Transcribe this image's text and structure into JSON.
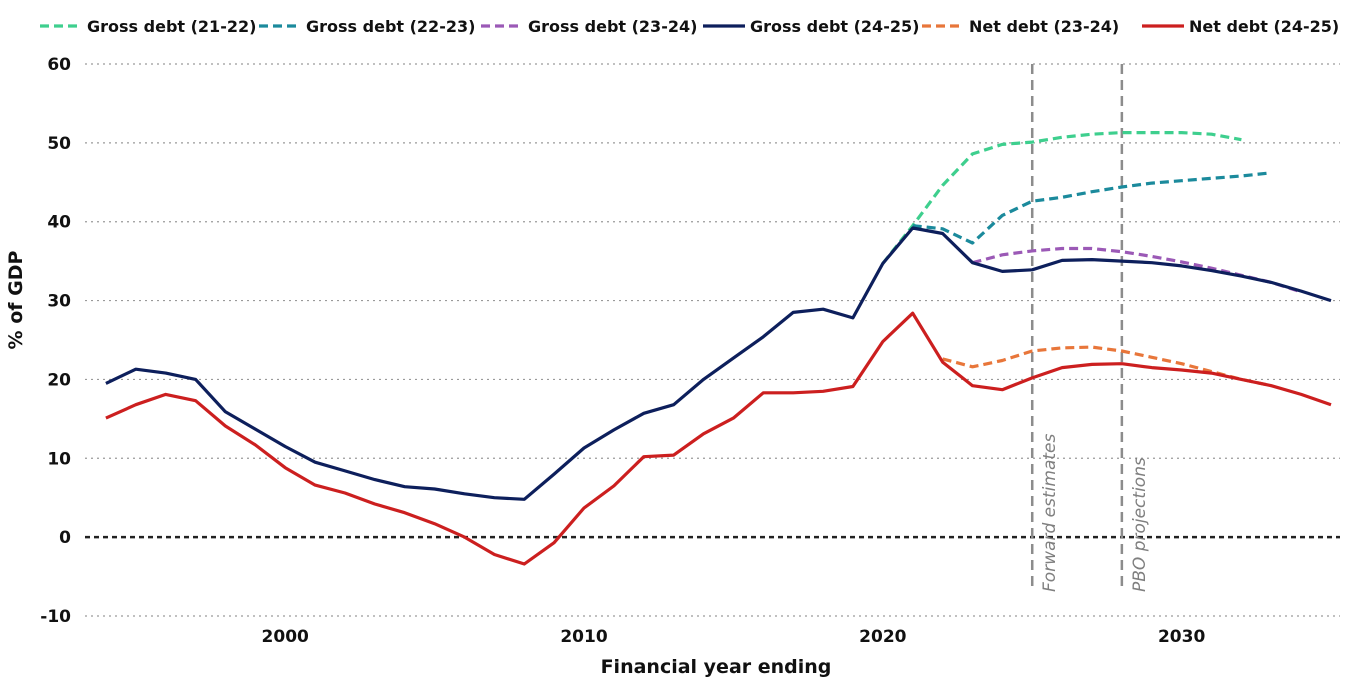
{
  "chart_data": {
    "type": "line",
    "xlabel": "Financial year ending",
    "ylabel": "% of GDP",
    "xlim": [
      1993.3,
      2035.3
    ],
    "ylim": [
      -10,
      60
    ],
    "x_ticks": [
      2000,
      2010,
      2020,
      2030
    ],
    "y_ticks": [
      -10,
      0,
      10,
      20,
      30,
      40,
      50,
      60
    ],
    "grid": "horizontal dotted",
    "legend_position": "top",
    "series": [
      {
        "name": "Gross debt (21-22)",
        "color": "#3ecf8e",
        "style": "dashed",
        "points": [
          [
            2020,
            34.7
          ],
          [
            2021,
            39.5
          ],
          [
            2022,
            44.6
          ],
          [
            2023,
            48.6
          ],
          [
            2024,
            49.8
          ],
          [
            2025,
            50.1
          ],
          [
            2026,
            50.7
          ],
          [
            2027,
            51.1
          ],
          [
            2028,
            51.3
          ],
          [
            2029,
            51.3
          ],
          [
            2030,
            51.3
          ],
          [
            2031,
            51.1
          ],
          [
            2032,
            50.4
          ]
        ]
      },
      {
        "name": "Gross debt (22-23)",
        "color": "#1b8a9c",
        "style": "dashed",
        "points": [
          [
            2021,
            39.5
          ],
          [
            2022,
            39.1
          ],
          [
            2023,
            37.3
          ],
          [
            2024,
            40.8
          ],
          [
            2025,
            42.6
          ],
          [
            2026,
            43.1
          ],
          [
            2027,
            43.8
          ],
          [
            2028,
            44.4
          ],
          [
            2029,
            44.9
          ],
          [
            2030,
            45.2
          ],
          [
            2031,
            45.5
          ],
          [
            2032,
            45.8
          ],
          [
            2033,
            46.2
          ]
        ]
      },
      {
        "name": "Gross debt (23-24)",
        "color": "#9b59b6",
        "style": "dashed",
        "points": [
          [
            2023,
            34.8
          ],
          [
            2024,
            35.8
          ],
          [
            2025,
            36.3
          ],
          [
            2026,
            36.6
          ],
          [
            2027,
            36.6
          ],
          [
            2028,
            36.2
          ],
          [
            2029,
            35.6
          ],
          [
            2030,
            34.9
          ],
          [
            2031,
            34.1
          ],
          [
            2032,
            33.2
          ],
          [
            2033,
            32.3
          ],
          [
            2034,
            31.1
          ]
        ]
      },
      {
        "name": "Gross debt (24-25)",
        "color": "#0d1f5c",
        "style": "solid",
        "points": [
          [
            1994,
            19.5
          ],
          [
            1995,
            21.3
          ],
          [
            1996,
            20.8
          ],
          [
            1997,
            20.0
          ],
          [
            1998,
            15.9
          ],
          [
            1999,
            13.7
          ],
          [
            2000,
            11.5
          ],
          [
            2001,
            9.5
          ],
          [
            2002,
            8.4
          ],
          [
            2003,
            7.3
          ],
          [
            2004,
            6.4
          ],
          [
            2005,
            6.1
          ],
          [
            2006,
            5.5
          ],
          [
            2007,
            5.0
          ],
          [
            2008,
            4.8
          ],
          [
            2009,
            8.0
          ],
          [
            2010,
            11.3
          ],
          [
            2011,
            13.6
          ],
          [
            2012,
            15.7
          ],
          [
            2013,
            16.8
          ],
          [
            2014,
            20.0
          ],
          [
            2015,
            22.7
          ],
          [
            2016,
            25.4
          ],
          [
            2017,
            28.5
          ],
          [
            2018,
            28.9
          ],
          [
            2019,
            27.8
          ],
          [
            2020,
            34.7
          ],
          [
            2021,
            39.2
          ],
          [
            2022,
            38.5
          ],
          [
            2023,
            34.8
          ],
          [
            2024,
            33.7
          ],
          [
            2025,
            33.9
          ],
          [
            2026,
            35.1
          ],
          [
            2027,
            35.2
          ],
          [
            2028,
            35.0
          ],
          [
            2029,
            34.8
          ],
          [
            2030,
            34.4
          ],
          [
            2031,
            33.8
          ],
          [
            2032,
            33.1
          ],
          [
            2033,
            32.3
          ],
          [
            2034,
            31.2
          ],
          [
            2035,
            30.0
          ]
        ]
      },
      {
        "name": "Net debt (23-24)",
        "color": "#e8763a",
        "style": "dashed",
        "points": [
          [
            2022,
            22.6
          ],
          [
            2023,
            21.6
          ],
          [
            2024,
            22.4
          ],
          [
            2025,
            23.6
          ],
          [
            2026,
            24.0
          ],
          [
            2027,
            24.1
          ],
          [
            2028,
            23.6
          ],
          [
            2029,
            22.8
          ],
          [
            2030,
            22.0
          ],
          [
            2031,
            21.0
          ],
          [
            2032,
            20.0
          ],
          [
            2033,
            19.2
          ]
        ]
      },
      {
        "name": "Net debt (24-25)",
        "color": "#cc1f1f",
        "style": "solid",
        "points": [
          [
            1994,
            15.1
          ],
          [
            1995,
            16.8
          ],
          [
            1996,
            18.1
          ],
          [
            1997,
            17.3
          ],
          [
            1998,
            14.1
          ],
          [
            1999,
            11.7
          ],
          [
            2000,
            8.8
          ],
          [
            2001,
            6.6
          ],
          [
            2002,
            5.6
          ],
          [
            2003,
            4.2
          ],
          [
            2004,
            3.1
          ],
          [
            2005,
            1.7
          ],
          [
            2006,
            0.0
          ],
          [
            2007,
            -2.2
          ],
          [
            2008,
            -3.4
          ],
          [
            2009,
            -0.7
          ],
          [
            2010,
            3.7
          ],
          [
            2011,
            6.5
          ],
          [
            2012,
            10.2
          ],
          [
            2013,
            10.4
          ],
          [
            2014,
            13.1
          ],
          [
            2015,
            15.1
          ],
          [
            2016,
            18.3
          ],
          [
            2017,
            18.3
          ],
          [
            2018,
            18.5
          ],
          [
            2019,
            19.1
          ],
          [
            2020,
            24.8
          ],
          [
            2021,
            28.4
          ],
          [
            2022,
            22.2
          ],
          [
            2023,
            19.2
          ],
          [
            2024,
            18.7
          ],
          [
            2025,
            20.2
          ],
          [
            2026,
            21.5
          ],
          [
            2027,
            21.9
          ],
          [
            2028,
            22.0
          ],
          [
            2029,
            21.5
          ],
          [
            2030,
            21.2
          ],
          [
            2031,
            20.8
          ],
          [
            2032,
            20.0
          ],
          [
            2033,
            19.2
          ],
          [
            2034,
            18.1
          ],
          [
            2035,
            16.8
          ]
        ]
      }
    ],
    "reference_lines": [
      {
        "x": 2025,
        "label": "Forward estimates"
      },
      {
        "x": 2028,
        "label": "PBO projections"
      }
    ],
    "zero_line": 0
  }
}
